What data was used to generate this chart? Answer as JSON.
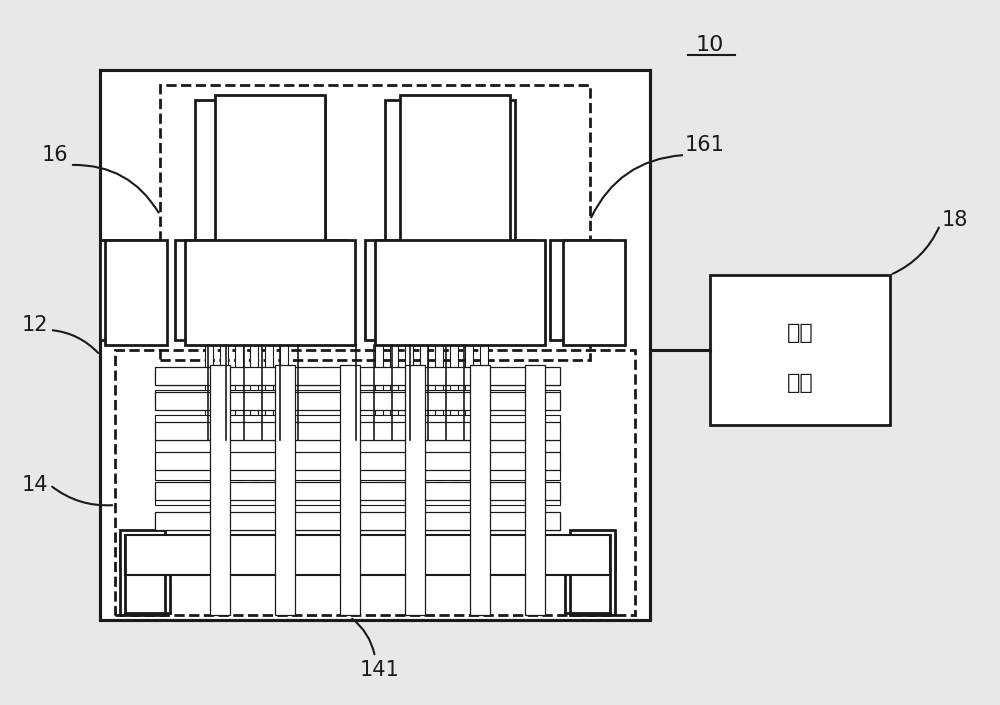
{
  "bg_color": "#e8e8e8",
  "line_color": "#1a1a1a",
  "lw": 2.0,
  "lw_thin": 1.5,
  "title_label": "10",
  "label_12": "12",
  "label_14": "14",
  "label_16": "16",
  "label_18": "18",
  "label_141": "141",
  "label_161": "161",
  "control_text1": "控制",
  "control_text2": "电路"
}
